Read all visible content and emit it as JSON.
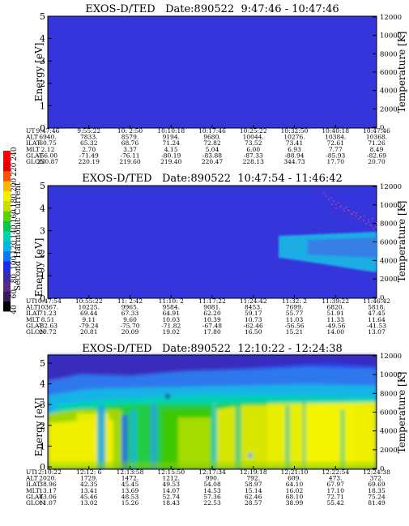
{
  "colorbar": {
    "label": "Second Harmonic Current",
    "ticks": [
      "40",
      "60",
      "80",
      "100",
      "120",
      "140",
      "160",
      "180",
      "200",
      "220",
      "240"
    ],
    "colors": [
      "#000000",
      "#3a1a5c",
      "#5a2a8a",
      "#3a2aa8",
      "#1a2ae6",
      "#0a78f0",
      "#00b4e6",
      "#00d2b4",
      "#00c84a",
      "#5ad200",
      "#c8dc00",
      "#f0f000",
      "#ffb400",
      "#ff5000",
      "#e60000",
      "#ff0000"
    ]
  },
  "row_labels": [
    "UT",
    "ALT",
    "ILAT",
    "MLT",
    "GLAT",
    "GLON"
  ],
  "chart_data": [
    {
      "type": "heatmap",
      "title": "EXOS-D/TED   Date:890522  9:47:46 - 10:47:46",
      "ylabel": "Energy [eV]",
      "ylabel_right": "Temperature [K]",
      "ylim": [
        0,
        5
      ],
      "yticks": [
        "0",
        "1",
        "2",
        "3",
        "4",
        "5"
      ],
      "ylim_right": [
        0,
        12000
      ],
      "yticks_right": [
        "0",
        "2000",
        "4000",
        "6000",
        "8000",
        "10000",
        "12000"
      ],
      "background": "#3535dc",
      "columns": [
        [
          "9:47:46",
          "6940.",
          "60.75",
          "2.12",
          "-66.00",
          "220.87"
        ],
        [
          "9:55:22",
          "7833.",
          "65.32",
          "2.70",
          "-71.49",
          "220.19"
        ],
        [
          "10: 2:50",
          "8579.",
          "68.76",
          "3.37",
          "-76.11",
          "219.60"
        ],
        [
          "10:10:18",
          "9194.",
          "71.24",
          "4.15",
          "-80.19",
          "219.40"
        ],
        [
          "10:17:46",
          "9680.",
          "72.82",
          "5.04",
          "-83.88",
          "220.47"
        ],
        [
          "10:25:22",
          "10044.",
          "73.52",
          "6.00",
          "-87.33",
          "228.13"
        ],
        [
          "10:32:50",
          "10276.",
          "73.41",
          "6.93",
          "-88.94",
          "344.73"
        ],
        [
          "10:40:18",
          "10384.",
          "72.61",
          "7.77",
          "-85.93",
          "17.70"
        ],
        [
          "10:47:46",
          "10368.",
          "71.26",
          "8.49",
          "-82.69",
          "20.70"
        ]
      ]
    },
    {
      "type": "heatmap",
      "title": "EXOS-D/TED   Date:890522  10:47:54 - 11:46:42",
      "ylabel": "Energy [eV]",
      "ylabel_right": "Temperature [K]",
      "ylim": [
        0,
        5
      ],
      "yticks": [
        "0",
        "1",
        "2",
        "3",
        "4",
        "5"
      ],
      "ylim_right": [
        0,
        12000
      ],
      "yticks_right": [
        "0",
        "2000",
        "4000",
        "6000",
        "8000",
        "10000",
        "12000"
      ],
      "background": "#3535dc",
      "columns": [
        [
          "10:47:54",
          "10367.",
          "71.23",
          "8.51",
          "-82.63",
          "20.72"
        ],
        [
          "10:55:22",
          "10225.",
          "69.44",
          "9.11",
          "-79.24",
          "20.81"
        ],
        [
          "11: 2:42",
          "9965.",
          "67.33",
          "9.60",
          "-75.70",
          "20.09"
        ],
        [
          "11:10: 2",
          "9584.",
          "64.91",
          "10.03",
          "-71.82",
          "19.02"
        ],
        [
          "11:17:22",
          "9081.",
          "62.20",
          "10.39",
          "-67.48",
          "17.80"
        ],
        [
          "11:24:42",
          "8453.",
          "59.17",
          "10.73",
          "-62.46",
          "16.50"
        ],
        [
          "11:32: 2",
          "7699.",
          "55.77",
          "11.03",
          "-56.56",
          "15.21"
        ],
        [
          "11:39:22",
          "6820.",
          "51.91",
          "11.33",
          "-49.56",
          "14.00"
        ],
        [
          "11:46:42",
          "5818.",
          "47.45",
          "11.64",
          "-41.53",
          "13.07"
        ]
      ]
    },
    {
      "type": "heatmap",
      "title": "EXOS-D/TED   Date:890522  12:10:22 - 12:24:38",
      "ylabel": "Energy [eV]",
      "ylabel_right": "Temperature [K]",
      "ylim": [
        0,
        12
      ],
      "yticks": [
        "0",
        "1",
        "2",
        "3",
        "4",
        "5"
      ],
      "ylim_right": [
        0,
        12000
      ],
      "yticks_right": [
        "0",
        "2000",
        "4000",
        "6000",
        "8000",
        "10000",
        "12000"
      ],
      "background": "#2a3ce6",
      "columns": [
        [
          "12:10:22",
          "2020.",
          "38.96",
          "13.17",
          "43.06",
          "11.07"
        ],
        [
          "12:12: 6",
          "1729.",
          "42.35",
          "13.41",
          "45.46",
          "13.02"
        ],
        [
          "12:13:58",
          "1472.",
          "45.45",
          "13.69",
          "48.53",
          "15.26"
        ],
        [
          "12:15:50",
          "1212.",
          "49.53",
          "14.07",
          "52.74",
          "18.43"
        ],
        [
          "12:17:34",
          "990.",
          "54.08",
          "14.53",
          "57.36",
          "22.53"
        ],
        [
          "12:19:18",
          "792.",
          "58.97",
          "15.14",
          "62.46",
          "28.57"
        ],
        [
          "12:21:10",
          "609.",
          "64.10",
          "16.02",
          "68.10",
          "38.99"
        ],
        [
          "12:22:54",
          "473.",
          "67.97",
          "17.10",
          "72.71",
          "55.42"
        ],
        [
          "12:24:38",
          "372.",
          "69.69",
          "18.35",
          "75.24",
          "81.49"
        ]
      ]
    }
  ]
}
